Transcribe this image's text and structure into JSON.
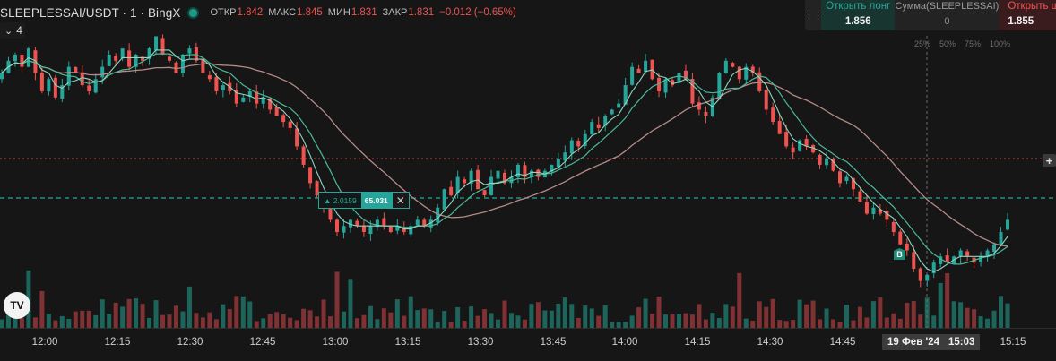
{
  "legend": {
    "symbol": "SLEEPLESSAI/USDT",
    "separator1": "·",
    "interval": "1",
    "separator2": "·",
    "exchange": "BingX",
    "open_label": "ОТКР",
    "open_value": "1.842",
    "high_label": "МАКС",
    "high_value": "1.845",
    "low_label": "МИН",
    "low_value": "1.831",
    "close_label": "ЗАКР",
    "close_value": "1.831",
    "change": "−0.012 (−0.65%)"
  },
  "indicators_toggle": {
    "count": "4",
    "chevron": "⌄"
  },
  "trade_panel": {
    "long_label": "Открыть лонг",
    "long_price": "1.856",
    "amount_label": "Сумма(SLEEPLESSAI)",
    "amount_value": "0",
    "short_label": "Открыть шорт",
    "short_price": "1.855",
    "percent_options": [
      "25%",
      "50%",
      "75%",
      "100%"
    ]
  },
  "position_label": {
    "side_text": "▲ 2.0159",
    "qty_text": "65.031",
    "close_symbol": "✕"
  },
  "plus_button": "+",
  "logo_text": "TV",
  "buy_marker": "B",
  "time_axis": {
    "ticks": [
      "12:00",
      "12:15",
      "12:30",
      "12:45",
      "13:00",
      "13:15",
      "13:30",
      "13:45",
      "14:00",
      "14:15",
      "14:30",
      "14:45",
      "15:15"
    ],
    "crosshair_date": "19 Фев '24",
    "crosshair_time": "15:03"
  },
  "colors": {
    "up": "#26a69a",
    "down": "#ef5350",
    "ma_fast": "#8fd5bf",
    "ma_mid": "#4cb89a",
    "ma_slow": "#b58a86",
    "position_line": "#26a69a",
    "price_line": "#ef5350"
  },
  "chart_data": {
    "type": "candlestick",
    "price_range": [
      1.72,
      2.13
    ],
    "candles_close": [
      2.04,
      2.06,
      2.07,
      2.05,
      2.08,
      2.04,
      2.01,
      2.03,
      2.0,
      2.02,
      2.05,
      2.04,
      2.02,
      2.01,
      2.03,
      2.05,
      2.07,
      2.06,
      2.08,
      2.05,
      2.07,
      2.06,
      2.08,
      2.1,
      2.07,
      2.06,
      2.04,
      2.07,
      2.08,
      2.06,
      2.04,
      2.03,
      2.01,
      2.02,
      2.01,
      1.99,
      2.0,
      2.01,
      1.99,
      2.0,
      1.98,
      1.97,
      1.96,
      1.95,
      1.92,
      1.89,
      1.86,
      1.84,
      1.82,
      1.8,
      1.78,
      1.79,
      1.8,
      1.79,
      1.78,
      1.79,
      1.8,
      1.79,
      1.78,
      1.79,
      1.78,
      1.79,
      1.8,
      1.79,
      1.8,
      1.82,
      1.85,
      1.84,
      1.87,
      1.86,
      1.88,
      1.85,
      1.84,
      1.87,
      1.88,
      1.86,
      1.87,
      1.89,
      1.87,
      1.88,
      1.87,
      1.88,
      1.89,
      1.9,
      1.91,
      1.93,
      1.92,
      1.94,
      1.96,
      1.95,
      1.97,
      1.98,
      1.99,
      2.02,
      2.05,
      2.04,
      2.06,
      2.03,
      2.01,
      2.03,
      2.02,
      2.04,
      2.03,
      1.99,
      1.98,
      1.97,
      2.0,
      2.04,
      2.06,
      2.05,
      2.03,
      2.05,
      2.04,
      2.01,
      1.98,
      1.96,
      1.94,
      1.92,
      1.91,
      1.93,
      1.92,
      1.91,
      1.89,
      1.9,
      1.88,
      1.86,
      1.87,
      1.85,
      1.83,
      1.81,
      1.82,
      1.81,
      1.8,
      1.78,
      1.76,
      1.75,
      1.72,
      1.7,
      1.71,
      1.73,
      1.74,
      1.73,
      1.74,
      1.75,
      1.74,
      1.73,
      1.74,
      1.75,
      1.76,
      1.78,
      1.8
    ],
    "position_entry": 2.0159
  }
}
